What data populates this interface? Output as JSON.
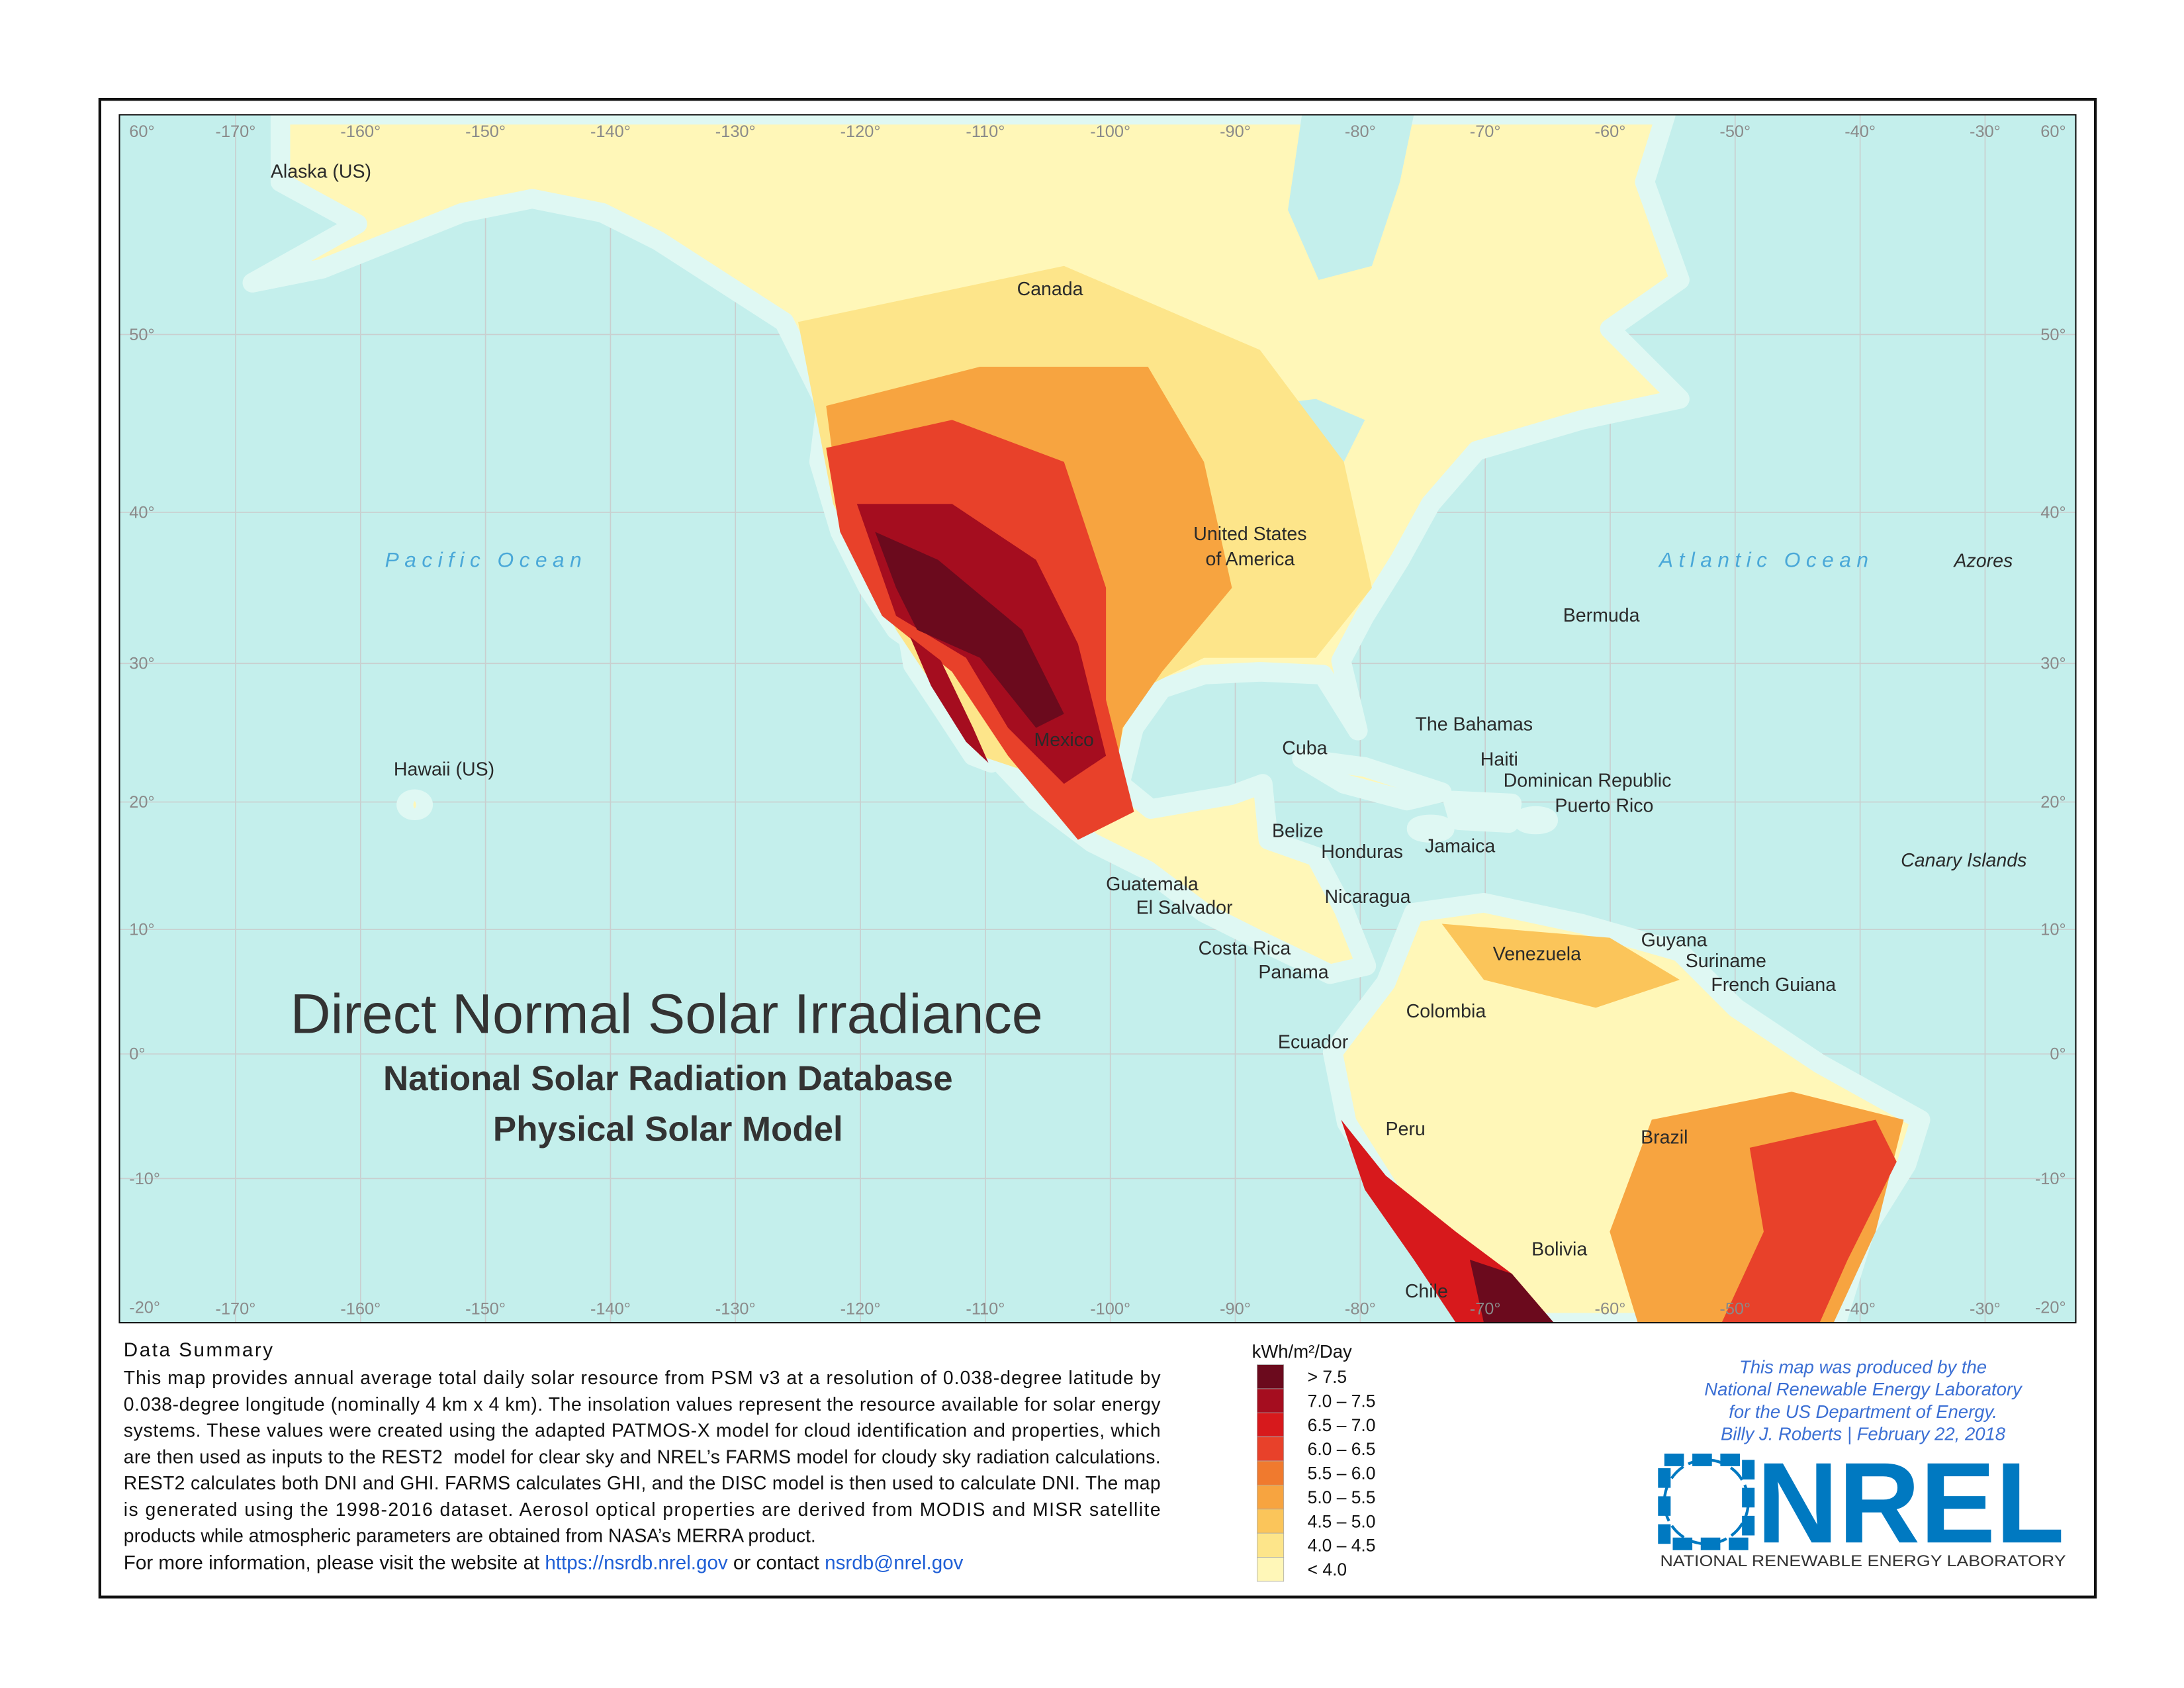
{
  "map": {
    "title": "Direct Normal Solar Irradiance",
    "subtitle_lines": [
      "National Solar Radiation Database",
      "Physical Solar Model"
    ],
    "longitude_labels": [
      "-170°",
      "-160°",
      "-150°",
      "-140°",
      "-130°",
      "-120°",
      "-110°",
      "-100°",
      "-90°",
      "-80°",
      "-70°",
      "-60°",
      "-50°",
      "-40°",
      "-30°"
    ],
    "latitude_labels": [
      "60°",
      "50°",
      "40°",
      "30°",
      "20°",
      "10°",
      "0°",
      "-10°",
      "-20°"
    ],
    "oceans": [
      "Pacific Ocean",
      "Atlantic Ocean"
    ],
    "places": [
      "Alaska (US)",
      "Canada",
      "United States",
      "of America",
      "Bermuda",
      "The Bahamas",
      "Cuba",
      "Haiti",
      "Dominican Republic",
      "Puerto Rico",
      "Jamaica",
      "Belize",
      "Honduras",
      "Nicaragua",
      "Guatemala",
      "El Salvador",
      "Costa Rica",
      "Panama",
      "Mexico",
      "Hawaii (US)",
      "Guyana",
      "Suriname",
      "French Guiana",
      "Venezuela",
      "Colombia",
      "Ecuador",
      "Peru",
      "Brazil",
      "Bolivia",
      "Chile"
    ],
    "italic_places": [
      "Azores",
      "Canary Islands"
    ]
  },
  "data_summary": {
    "heading": "Data Summary",
    "lines": [
      "This map provides annual average total daily solar resource from PSM v3 at a resolution of 0.038-degree latitude by",
      "0.038-degree longitude (nominally 4 km x 4 km). The insolation values represent the resource available for solar energy",
      "systems. These values were created using the adapted PATMOS-X model for cloud identification and properties, which",
      "are then used as inputs to the REST2  model for clear sky and NREL’s FARMS model for cloudy sky radiation calculations.",
      "REST2 calculates both DNI and GHI. FARMS calculates GHI, and the DISC model is then used to calculate DNI. The map",
      "is generated using the 1998-2016 dataset. Aerosol optical properties are derived from MODIS and MISR satellite",
      "products while atmospheric parameters are obtained from NASA’s MERRA product."
    ],
    "more_info": [
      "For more information, please visit the website at ",
      "https://nsrdb.nrel.gov",
      " or contact ",
      "nsrdb@nrel.gov"
    ]
  },
  "legend": {
    "title": "kWh/m²/Day",
    "items": [
      {
        "label": "> 7.5",
        "color": "#6b0a1d"
      },
      {
        "label": "7.0 – 7.5",
        "color": "#a50d1f"
      },
      {
        "label": "6.5 – 7.0",
        "color": "#d7191c"
      },
      {
        "label": "6.0 – 6.5",
        "color": "#e8412a"
      },
      {
        "label": "5.5 – 6.0",
        "color": "#f07a2e"
      },
      {
        "label": "5.0 – 5.5",
        "color": "#f7a440"
      },
      {
        "label": "4.5 – 5.0",
        "color": "#fbc55a"
      },
      {
        "label": "4.0 – 4.5",
        "color": "#fde58a"
      },
      {
        "label": "< 4.0",
        "color": "#fff7b8"
      }
    ]
  },
  "credits": {
    "lines": [
      "This map was produced by the",
      "National Renewable Energy Laboratory",
      "for the US Department of Energy.",
      "Billy J. Roberts | February 22, 2018"
    ]
  },
  "logo": {
    "name": "NREL",
    "full_name": "NATIONAL RENEWABLE ENERGY LABORATORY"
  }
}
